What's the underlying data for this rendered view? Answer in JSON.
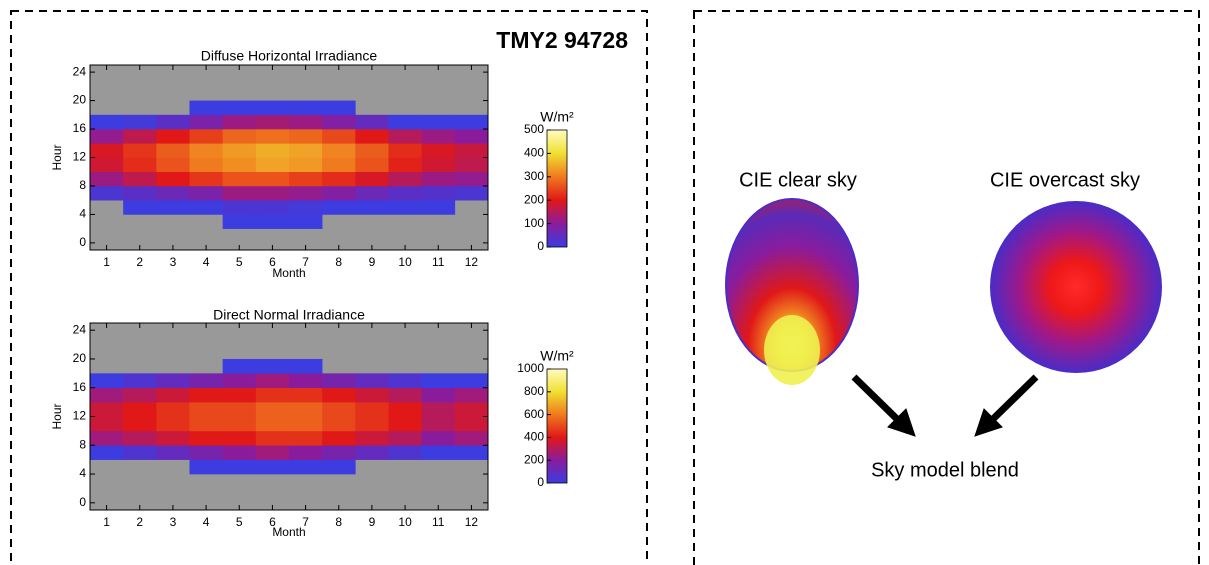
{
  "header": {
    "title": "TMY2 94728"
  },
  "diagram": {
    "clear_label": "CIE clear sky",
    "overcast_label": "CIE overcast sky",
    "blend_label": "Sky model blend"
  },
  "chart_data": [
    {
      "type": "heatmap",
      "title": "Diffuse Horizontal Irradiance",
      "x_label": "Month",
      "y_label": "Hour",
      "x": [
        1,
        2,
        3,
        4,
        5,
        6,
        7,
        8,
        9,
        10,
        11,
        12
      ],
      "y": [
        1,
        3,
        5,
        7,
        9,
        11,
        13,
        15,
        17,
        19,
        21,
        23
      ],
      "values": [
        [
          null,
          null,
          null,
          null,
          null,
          null,
          null,
          null,
          null,
          null,
          null,
          null
        ],
        [
          null,
          null,
          null,
          null,
          0,
          0,
          0,
          null,
          null,
          null,
          null,
          null
        ],
        [
          null,
          0,
          0,
          0,
          20,
          20,
          10,
          0,
          0,
          0,
          0,
          null
        ],
        [
          20,
          40,
          60,
          80,
          120,
          120,
          110,
          90,
          60,
          40,
          30,
          20
        ],
        [
          120,
          160,
          200,
          230,
          260,
          260,
          240,
          220,
          190,
          150,
          120,
          110
        ],
        [
          180,
          220,
          260,
          300,
          320,
          340,
          330,
          300,
          260,
          210,
          180,
          160
        ],
        [
          190,
          230,
          270,
          310,
          330,
          350,
          340,
          310,
          270,
          220,
          190,
          170
        ],
        [
          110,
          160,
          200,
          240,
          280,
          290,
          280,
          250,
          200,
          150,
          120,
          100
        ],
        [
          0,
          10,
          40,
          80,
          120,
          130,
          120,
          90,
          50,
          0,
          0,
          0
        ],
        [
          null,
          null,
          null,
          0,
          0,
          0,
          0,
          0,
          null,
          null,
          null,
          null
        ],
        [
          null,
          null,
          null,
          null,
          null,
          null,
          null,
          null,
          null,
          null,
          null,
          null
        ],
        [
          null,
          null,
          null,
          null,
          null,
          null,
          null,
          null,
          null,
          null,
          null,
          null
        ]
      ],
      "xlim": [
        0.5,
        12.5
      ],
      "xticks": [
        1,
        2,
        3,
        4,
        5,
        6,
        7,
        8,
        9,
        10,
        11,
        12
      ],
      "ylim": [
        -1,
        25
      ],
      "yticks": [
        0,
        4,
        8,
        12,
        16,
        20,
        24
      ],
      "colormap": [
        "#3c3ce0",
        "#8a1c9c",
        "#e01818",
        "#f07a1e",
        "#f0e032",
        "#fffcc0"
      ],
      "colorbar": {
        "label": "W/m²",
        "lim": [
          0,
          500
        ],
        "ticks": [
          0,
          100,
          200,
          300,
          400,
          500
        ]
      }
    },
    {
      "type": "heatmap",
      "title": "Direct Normal Irradiance",
      "x_label": "Month",
      "y_label": "Hour",
      "x": [
        1,
        2,
        3,
        4,
        5,
        6,
        7,
        8,
        9,
        10,
        11,
        12
      ],
      "y": [
        1,
        3,
        5,
        7,
        9,
        11,
        13,
        15,
        17,
        19,
        21,
        23
      ],
      "values": [
        [
          null,
          null,
          null,
          null,
          null,
          null,
          null,
          null,
          null,
          null,
          null,
          null
        ],
        [
          null,
          null,
          null,
          null,
          null,
          null,
          null,
          null,
          null,
          null,
          null,
          null
        ],
        [
          null,
          null,
          null,
          0,
          0,
          0,
          0,
          0,
          null,
          null,
          null,
          null
        ],
        [
          0,
          50,
          100,
          150,
          200,
          250,
          200,
          150,
          100,
          50,
          0,
          0
        ],
        [
          250,
          300,
          350,
          400,
          400,
          450,
          450,
          400,
          350,
          300,
          200,
          250
        ],
        [
          350,
          400,
          450,
          500,
          500,
          550,
          550,
          500,
          450,
          400,
          300,
          350
        ],
        [
          350,
          400,
          450,
          500,
          500,
          550,
          550,
          500,
          450,
          400,
          300,
          350
        ],
        [
          250,
          300,
          350,
          400,
          400,
          450,
          450,
          400,
          350,
          300,
          200,
          250
        ],
        [
          0,
          50,
          100,
          150,
          200,
          250,
          200,
          150,
          100,
          50,
          0,
          0
        ],
        [
          null,
          null,
          null,
          null,
          0,
          0,
          0,
          null,
          null,
          null,
          null,
          null
        ],
        [
          null,
          null,
          null,
          null,
          null,
          null,
          null,
          null,
          null,
          null,
          null,
          null
        ],
        [
          null,
          null,
          null,
          null,
          null,
          null,
          null,
          null,
          null,
          null,
          null,
          null
        ]
      ],
      "xlim": [
        0.5,
        12.5
      ],
      "xticks": [
        1,
        2,
        3,
        4,
        5,
        6,
        7,
        8,
        9,
        10,
        11,
        12
      ],
      "ylim": [
        -1,
        25
      ],
      "yticks": [
        0,
        4,
        8,
        12,
        16,
        20,
        24
      ],
      "colormap": [
        "#3c3ce0",
        "#8a1c9c",
        "#e01818",
        "#f07a1e",
        "#f0e032",
        "#fffcc0"
      ],
      "colorbar": {
        "label": "W/m²",
        "lim": [
          0,
          1000
        ],
        "ticks": [
          0,
          200,
          400,
          600,
          800,
          1000
        ]
      }
    }
  ]
}
